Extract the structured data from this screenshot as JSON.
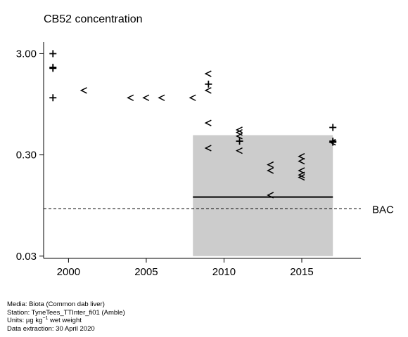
{
  "chart_data": {
    "type": "scatter",
    "title": "CB52 concentration",
    "y_scale": "log",
    "xlim": [
      1998.4,
      2018.8
    ],
    "ylim": [
      0.0285,
      3.9
    ],
    "xticks": [
      2000,
      2005,
      2010,
      2015
    ],
    "xtick_labels": [
      "2000",
      "2005",
      "2010",
      "2015"
    ],
    "yticks": [
      0.03,
      0.3,
      3.0
    ],
    "ytick_labels": [
      "0.03",
      "0.30",
      "3.00"
    ],
    "reference_line": {
      "label": "BAC",
      "value": 0.088,
      "style": "dashed"
    },
    "assessment_band": {
      "x_range": [
        2008,
        2017
      ],
      "y_range": [
        0.03,
        0.47
      ],
      "color": "#cccccc"
    },
    "trend_line": {
      "x_range": [
        2008,
        2017
      ],
      "value": 0.115
    },
    "series": [
      {
        "marker": "+",
        "points": [
          {
            "x": 1999,
            "y": 3.0
          },
          {
            "x": 1999,
            "y": 2.2
          },
          {
            "x": 1999,
            "y": 2.15
          },
          {
            "x": 1999,
            "y": 1.1
          },
          {
            "x": 2009,
            "y": 1.5
          },
          {
            "x": 2011,
            "y": 0.41
          },
          {
            "x": 2017,
            "y": 0.56
          },
          {
            "x": 2017,
            "y": 0.41
          },
          {
            "x": 2017,
            "y": 0.4
          }
        ]
      },
      {
        "marker": "<",
        "points": [
          {
            "x": 2001,
            "y": 1.3
          },
          {
            "x": 2004,
            "y": 1.1
          },
          {
            "x": 2005,
            "y": 1.1
          },
          {
            "x": 2006,
            "y": 1.1
          },
          {
            "x": 2008,
            "y": 1.1
          },
          {
            "x": 2009,
            "y": 1.9
          },
          {
            "x": 2009,
            "y": 1.3
          },
          {
            "x": 2009,
            "y": 0.62
          },
          {
            "x": 2009,
            "y": 0.35
          },
          {
            "x": 2011,
            "y": 0.53
          },
          {
            "x": 2011,
            "y": 0.5
          },
          {
            "x": 2011,
            "y": 0.46
          },
          {
            "x": 2011,
            "y": 0.33
          },
          {
            "x": 2013,
            "y": 0.24
          },
          {
            "x": 2013,
            "y": 0.21
          },
          {
            "x": 2013,
            "y": 0.12
          },
          {
            "x": 2015,
            "y": 0.29
          },
          {
            "x": 2015,
            "y": 0.26
          },
          {
            "x": 2015,
            "y": 0.21
          },
          {
            "x": 2015,
            "y": 0.19
          },
          {
            "x": 2015,
            "y": 0.18
          },
          {
            "x": 2017,
            "y": 0.4
          }
        ]
      }
    ]
  },
  "footer": {
    "media": "Media: Biota (Common dab liver)",
    "station": "Station: TyneTees_TTInter_fi01 (Amble)",
    "units_prefix": "Units: µg kg",
    "units_exponent": "−1",
    "units_suffix": " wet weight",
    "extraction": "Data extraction: 30 April 2020"
  }
}
